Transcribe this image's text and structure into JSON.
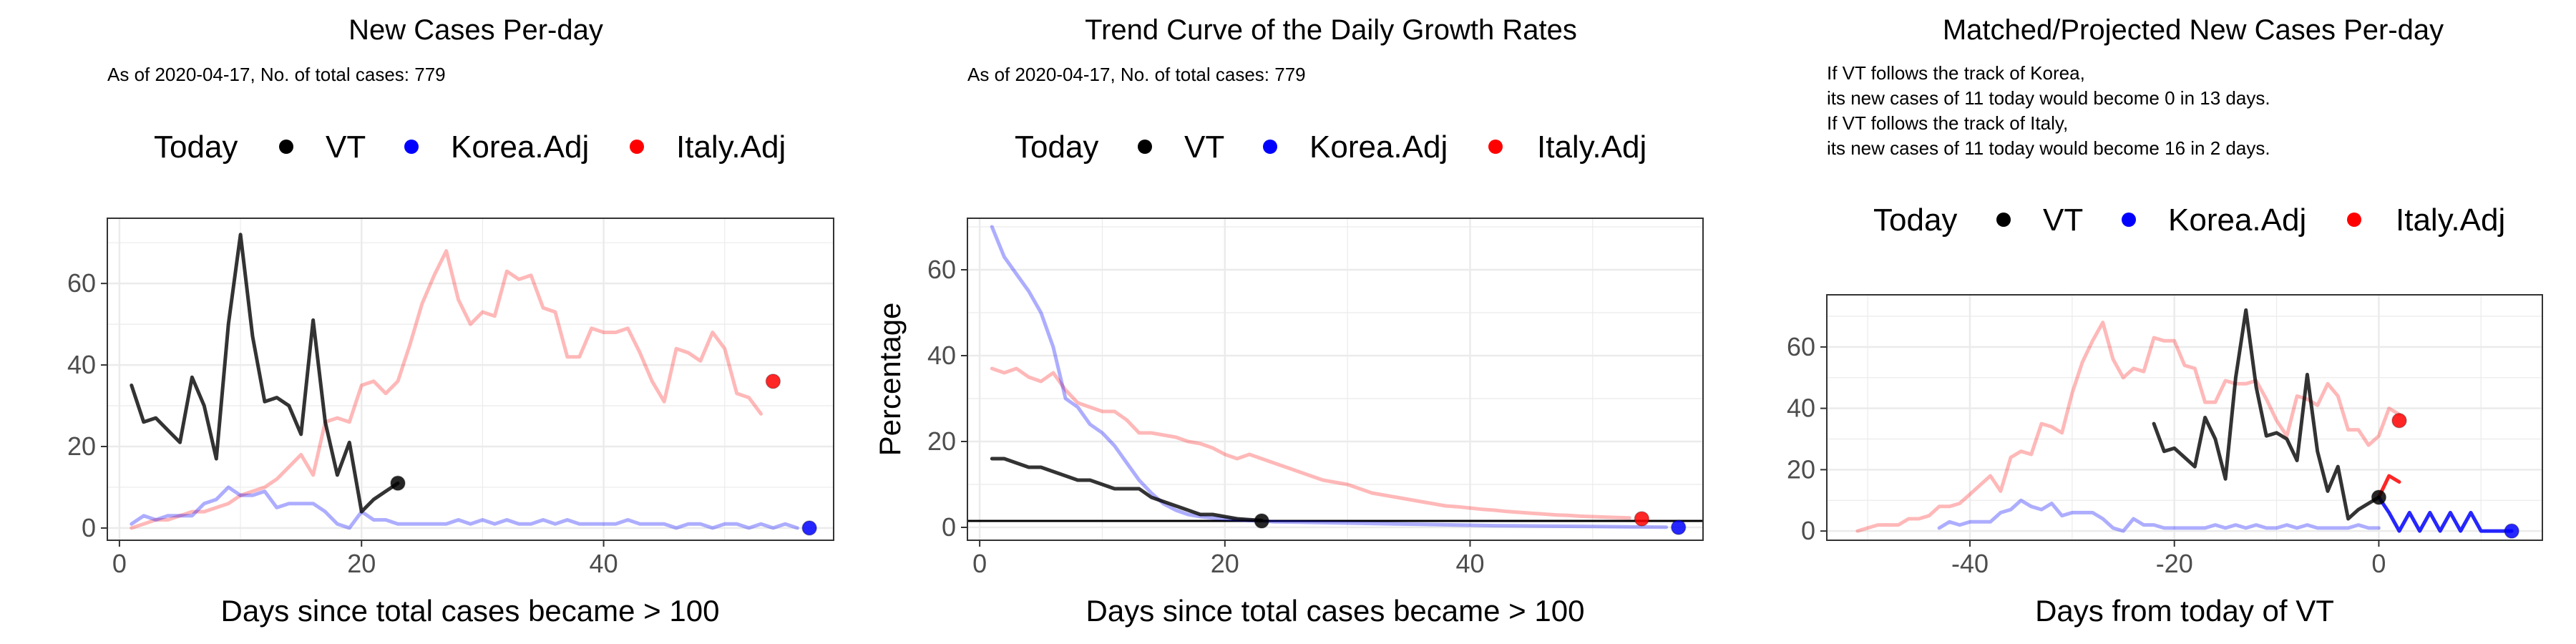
{
  "colors": {
    "vt": "#000000",
    "korea": "#0000ff",
    "italy": "#ff0000"
  },
  "chart_data": [
    {
      "type": "line",
      "title": "New Cases Per-day",
      "subtitle": [
        "As of 2020-04-17, No. of total cases: 779"
      ],
      "xlabel": "Days since total cases became > 100",
      "ylabel": "",
      "xlim": [
        -1,
        59
      ],
      "ylim": [
        -3,
        76
      ],
      "xticks": [
        0,
        20,
        40
      ],
      "yticks": [
        0,
        20,
        40,
        60
      ],
      "legend": {
        "title": "Today",
        "position": "top",
        "entries": [
          "VT",
          "Korea.Adj",
          "Italy.Adj"
        ]
      },
      "series": [
        {
          "name": "Italy.Adj",
          "color": "#ff0000",
          "x": [
            1,
            2,
            3,
            4,
            5,
            6,
            7,
            8,
            9,
            10,
            11,
            12,
            13,
            14,
            15,
            16,
            17,
            18,
            19,
            20,
            21,
            22,
            23,
            24,
            25,
            26,
            27,
            28,
            29,
            30,
            31,
            32,
            33,
            34,
            35,
            36,
            37,
            38,
            39,
            40,
            41,
            42,
            43,
            44,
            45,
            46,
            47,
            48,
            49,
            50,
            51,
            52,
            53
          ],
          "y": [
            0,
            1,
            2,
            2,
            3,
            4,
            4,
            5,
            6,
            8,
            9,
            10,
            12,
            15,
            18,
            13,
            26,
            27,
            26,
            35,
            36,
            33,
            36,
            45,
            55,
            62,
            68,
            56,
            50,
            53,
            52,
            63,
            61,
            62,
            54,
            53,
            42,
            42,
            49,
            48,
            48,
            49,
            43,
            36,
            31,
            44,
            43,
            41,
            48,
            44,
            33,
            32,
            28
          ]
        },
        {
          "name": "Korea.Adj",
          "color": "#0000ff",
          "x": [
            1,
            2,
            3,
            4,
            5,
            6,
            7,
            8,
            9,
            10,
            11,
            12,
            13,
            14,
            15,
            16,
            17,
            18,
            19,
            20,
            21,
            22,
            23,
            24,
            25,
            26,
            27,
            28,
            29,
            30,
            31,
            32,
            33,
            34,
            35,
            36,
            37,
            38,
            39,
            40,
            41,
            42,
            43,
            44,
            45,
            46,
            47,
            48,
            49,
            50,
            51,
            52,
            53,
            54,
            55,
            56
          ],
          "y": [
            1,
            3,
            2,
            3,
            3,
            3,
            6,
            7,
            10,
            8,
            8,
            9,
            5,
            6,
            6,
            6,
            4,
            1,
            0,
            4,
            2,
            2,
            1,
            1,
            1,
            1,
            1,
            2,
            1,
            2,
            1,
            2,
            1,
            1,
            2,
            1,
            2,
            1,
            1,
            1,
            1,
            2,
            1,
            1,
            1,
            0,
            1,
            1,
            0,
            1,
            1,
            0,
            1,
            0,
            1,
            0
          ]
        },
        {
          "name": "VT",
          "color": "#000000",
          "x": [
            1,
            2,
            3,
            4,
            5,
            6,
            7,
            8,
            9,
            10,
            11,
            12,
            13,
            14,
            15,
            16,
            17,
            18,
            19,
            20,
            21,
            22,
            23
          ],
          "y": [
            35,
            26,
            27,
            24,
            21,
            37,
            30,
            17,
            50,
            72,
            47,
            31,
            32,
            30,
            23,
            51,
            26,
            13,
            21,
            4,
            7,
            9,
            11
          ]
        }
      ],
      "today_points": [
        {
          "series": "Italy.Adj",
          "x": 54,
          "y": 36
        },
        {
          "series": "Korea.Adj",
          "x": 57,
          "y": 0
        },
        {
          "series": "VT",
          "x": 23,
          "y": 11
        }
      ]
    },
    {
      "type": "line",
      "title": "Trend Curve of the Daily Growth Rates",
      "subtitle": [
        "As of 2020-04-17, No. of total cases: 779"
      ],
      "xlabel": "Days since total cases became > 100",
      "ylabel": "Percentage",
      "xlim": [
        -1,
        59
      ],
      "ylim": [
        -3,
        72
      ],
      "xticks": [
        0,
        20,
        40
      ],
      "yticks": [
        0,
        20,
        40,
        60
      ],
      "hline": 1.5,
      "legend": {
        "title": "Today",
        "position": "top",
        "entries": [
          "VT",
          "Korea.Adj",
          "Italy.Adj"
        ]
      },
      "series": [
        {
          "name": "Italy.Adj",
          "color": "#ff0000",
          "x": [
            1,
            2,
            3,
            4,
            5,
            6,
            7,
            8,
            9,
            10,
            11,
            12,
            13,
            14,
            15,
            16,
            17,
            18,
            19,
            20,
            21,
            22,
            23,
            24,
            25,
            26,
            27,
            28,
            29,
            30,
            31,
            32,
            33,
            34,
            35,
            36,
            37,
            38,
            39,
            40,
            41,
            42,
            43,
            44,
            45,
            46,
            47,
            48,
            49,
            50,
            51,
            52,
            53
          ],
          "y": [
            37,
            36,
            37,
            35,
            34,
            36,
            32,
            29,
            28,
            27,
            27,
            25,
            22,
            22,
            21.5,
            21,
            20,
            19.5,
            18.5,
            17,
            16,
            17,
            16,
            15,
            14,
            13,
            12,
            11,
            10.5,
            10,
            9,
            8,
            7.5,
            7,
            6.5,
            6,
            5.5,
            5,
            4.8,
            4.5,
            4.2,
            4,
            3.7,
            3.5,
            3.3,
            3.1,
            2.9,
            2.8,
            2.6,
            2.5,
            2.4,
            2.3,
            2.2
          ]
        },
        {
          "name": "Korea.Adj",
          "color": "#0000ff",
          "x": [
            1,
            2,
            3,
            4,
            5,
            6,
            7,
            8,
            9,
            10,
            11,
            12,
            13,
            14,
            15,
            16,
            17,
            18,
            19,
            20,
            21,
            22,
            23,
            24,
            26,
            28,
            30,
            32,
            34,
            36,
            38,
            40,
            42,
            44,
            46,
            48,
            50,
            52,
            54,
            56
          ],
          "y": [
            70,
            63,
            59,
            55,
            50,
            42,
            30,
            28,
            24,
            22,
            19,
            15,
            11,
            8,
            5.5,
            4,
            3,
            2.5,
            2.2,
            2,
            1.8,
            1.6,
            1.5,
            1.3,
            1.2,
            1.1,
            1,
            0.9,
            0.8,
            0.7,
            0.6,
            0.5,
            0.4,
            0.35,
            0.3,
            0.25,
            0.2,
            0.15,
            0.1,
            0.05
          ]
        },
        {
          "name": "VT",
          "color": "#000000",
          "x": [
            1,
            2,
            3,
            4,
            5,
            6,
            7,
            8,
            9,
            10,
            11,
            12,
            13,
            14,
            15,
            16,
            17,
            18,
            19,
            20,
            21,
            22,
            23
          ],
          "y": [
            16,
            16,
            15,
            14,
            14,
            13,
            12,
            11,
            11,
            10,
            9,
            9,
            9,
            7,
            6,
            5,
            4,
            3,
            3,
            2.5,
            2,
            1.8,
            1.6
          ]
        }
      ],
      "today_points": [
        {
          "series": "Italy.Adj",
          "x": 54,
          "y": 2
        },
        {
          "series": "Korea.Adj",
          "x": 57,
          "y": 0
        },
        {
          "series": "VT",
          "x": 23,
          "y": 1.5
        }
      ]
    },
    {
      "type": "line",
      "title": "Matched/Projected New Cases Per-day",
      "subtitle": [
        "If VT follows the track of Korea,",
        "its new cases of 11 today would become 0 in 13 days.",
        "If VT follows the track of Italy,",
        "its new cases of 11 today would become 16 in 2 days."
      ],
      "xlabel": "Days from today of VT",
      "ylabel": "",
      "xlim": [
        -54,
        16
      ],
      "ylim": [
        -3,
        77
      ],
      "xticks": [
        -40,
        -20,
        0
      ],
      "yticks": [
        0,
        20,
        40,
        60
      ],
      "legend": {
        "title": "Today",
        "position": "top",
        "entries": [
          "VT",
          "Korea.Adj",
          "Italy.Adj"
        ]
      },
      "series": [
        {
          "name": "Italy.Adj",
          "color": "#ff0000",
          "x": [
            -51,
            -50,
            -49,
            -48,
            -47,
            -46,
            -45,
            -44,
            -43,
            -42,
            -41,
            -40,
            -39,
            -38,
            -37,
            -36,
            -35,
            -34,
            -33,
            -32,
            -31,
            -30,
            -29,
            -28,
            -27,
            -26,
            -25,
            -24,
            -23,
            -22,
            -21,
            -20,
            -19,
            -18,
            -17,
            -16,
            -15,
            -14,
            -13,
            -12,
            -11,
            -10,
            -9,
            -8,
            -7,
            -6,
            -5,
            -4,
            -3,
            -2,
            -1,
            0,
            1,
            2
          ],
          "y": [
            0,
            1,
            2,
            2,
            2,
            4,
            4,
            5,
            8,
            8,
            9,
            12,
            15,
            18,
            13,
            24,
            26,
            25,
            35,
            34,
            32,
            45,
            55,
            62,
            68,
            56,
            50,
            53,
            52,
            63,
            62,
            62,
            54,
            53,
            42,
            42,
            49,
            48,
            48,
            49,
            43,
            36,
            31,
            44,
            43,
            41,
            48,
            44,
            33,
            33,
            28,
            31,
            40,
            38
          ]
        },
        {
          "name": "Italy.Adj",
          "color": "#ff0000",
          "x": [
            0,
            1,
            2
          ],
          "y": [
            11,
            18,
            16
          ],
          "style": "solid"
        },
        {
          "name": "Korea.Adj",
          "color": "#0000ff",
          "x": [
            -43,
            -42,
            -41,
            -40,
            -39,
            -38,
            -37,
            -36,
            -35,
            -34,
            -33,
            -32,
            -31,
            -30,
            -29,
            -28,
            -27,
            -26,
            -25,
            -24,
            -23,
            -22,
            -21,
            -20,
            -19,
            -18,
            -17,
            -16,
            -15,
            -14,
            -13,
            -12,
            -11,
            -10,
            -9,
            -8,
            -7,
            -6,
            -5,
            -4,
            -3,
            -2,
            -1,
            0
          ],
          "y": [
            1,
            3,
            2,
            3,
            3,
            3,
            6,
            7,
            10,
            8,
            7,
            9,
            5,
            6,
            6,
            6,
            4,
            1,
            0,
            4,
            2,
            2,
            1,
            1,
            1,
            1,
            1,
            2,
            1,
            2,
            1,
            2,
            1,
            1,
            2,
            1,
            2,
            1,
            1,
            1,
            1,
            2,
            1,
            1
          ]
        },
        {
          "name": "Korea.Adj",
          "color": "#0000ff",
          "x": [
            0,
            1,
            2,
            3,
            4,
            5,
            6,
            7,
            8,
            9,
            10,
            11,
            12,
            13
          ],
          "y": [
            11,
            6,
            0,
            6,
            0,
            6,
            0,
            6,
            0,
            6,
            0,
            0,
            0,
            0
          ],
          "style": "solid"
        },
        {
          "name": "VT",
          "color": "#000000",
          "x": [
            -22,
            -21,
            -20,
            -19,
            -18,
            -17,
            -16,
            -15,
            -14,
            -13,
            -12,
            -11,
            -10,
            -9,
            -8,
            -7,
            -6,
            -5,
            -4,
            -3,
            -2,
            -1,
            0
          ],
          "y": [
            35,
            26,
            27,
            24,
            21,
            37,
            30,
            17,
            50,
            72,
            47,
            31,
            32,
            30,
            23,
            51,
            26,
            13,
            21,
            4,
            7,
            9,
            11
          ]
        }
      ],
      "today_points": [
        {
          "series": "Italy.Adj",
          "x": 2,
          "y": 36
        },
        {
          "series": "Korea.Adj",
          "x": 13,
          "y": 0
        },
        {
          "series": "VT",
          "x": 0,
          "y": 11
        }
      ]
    }
  ]
}
